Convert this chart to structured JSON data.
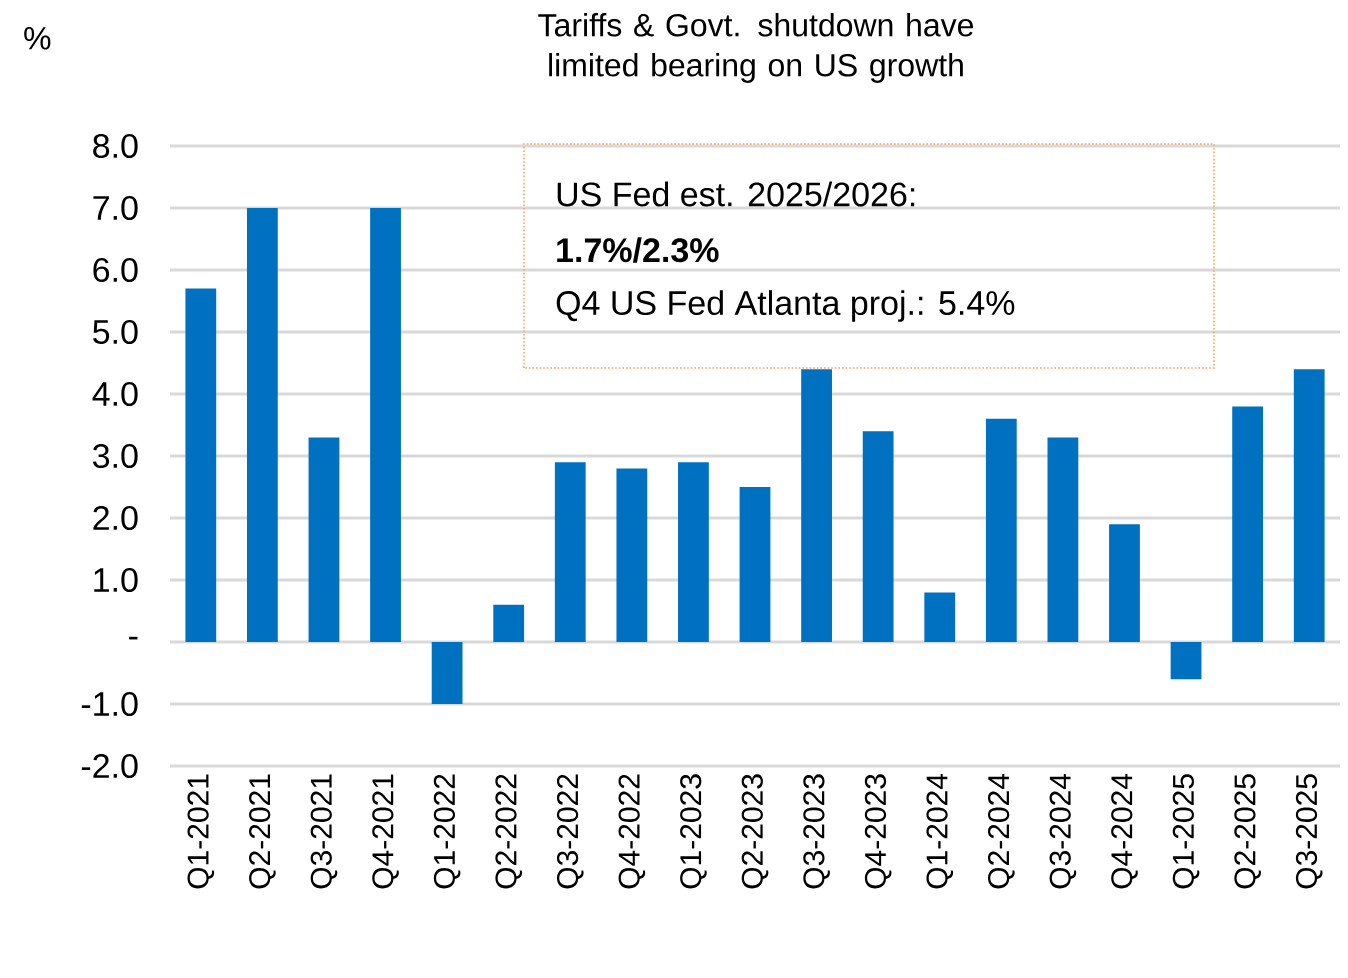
{
  "chart_data": {
    "type": "bar",
    "title": "Tariffs & Govt. shutdown have limited bearing on US growth",
    "ylabel": "%",
    "categories": [
      "Q1-2021",
      "Q2-2021",
      "Q3-2021",
      "Q4-2021",
      "Q1-2022",
      "Q2-2022",
      "Q3-2022",
      "Q4-2022",
      "Q1-2023",
      "Q2-2023",
      "Q3-2023",
      "Q4-2023",
      "Q1-2024",
      "Q2-2024",
      "Q3-2024",
      "Q4-2024",
      "Q1-2025",
      "Q2-2025",
      "Q3-2025"
    ],
    "values": [
      5.7,
      7.0,
      3.3,
      7.0,
      -1.0,
      0.6,
      2.9,
      2.8,
      2.9,
      2.5,
      4.4,
      3.4,
      0.8,
      3.6,
      3.3,
      1.9,
      -0.6,
      3.8,
      4.4
    ],
    "color": "#0070c0",
    "ylim": [
      -2,
      8
    ],
    "yticks": [
      {
        "value": -2,
        "label": "-2.0"
      },
      {
        "value": -1,
        "label": "-1.0"
      },
      {
        "value": 0,
        "label": "-"
      },
      {
        "value": 1,
        "label": "1.0"
      },
      {
        "value": 2,
        "label": "2.0"
      },
      {
        "value": 3,
        "label": "3.0"
      },
      {
        "value": 4,
        "label": "4.0"
      },
      {
        "value": 5,
        "label": "5.0"
      },
      {
        "value": 6,
        "label": "6.0"
      },
      {
        "value": 7,
        "label": "7.0"
      },
      {
        "value": 8,
        "label": "8.0"
      }
    ],
    "grid": "y",
    "annotations": [
      "US Fed est. 2025/2026:",
      "1.7%/2.3%",
      "Q4 US Fed Atlanta proj.: 5.4%"
    ]
  }
}
